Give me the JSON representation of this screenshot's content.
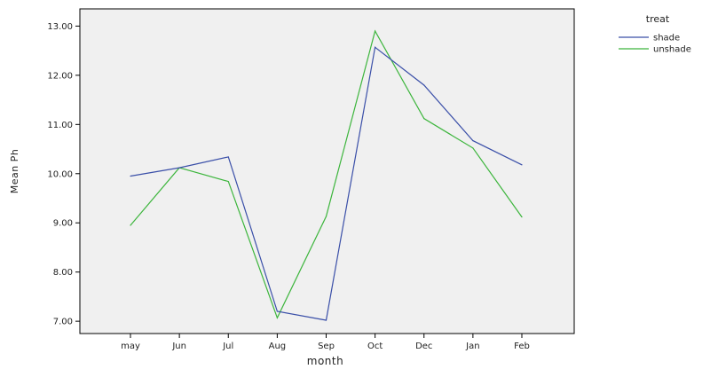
{
  "chart_data": {
    "type": "line",
    "title": "",
    "xlabel": "month",
    "ylabel": "Mean Ph",
    "categories": [
      "may",
      "Jun",
      "Jul",
      "Aug",
      "Sep",
      "Oct",
      "Dec",
      "Jan",
      "Feb"
    ],
    "ylim": [
      6.75,
      13.35
    ],
    "yticks": [
      "7.00",
      "8.00",
      "9.00",
      "10.00",
      "11.00",
      "12.00",
      "13.00"
    ],
    "grid": false,
    "legend": {
      "title": "treat",
      "placement": "top-right-outside"
    },
    "series": [
      {
        "name": "shade",
        "color": "#3a4fa8",
        "values": [
          9.95,
          10.12,
          10.34,
          7.2,
          7.02,
          12.57,
          11.8,
          10.67,
          10.18
        ]
      },
      {
        "name": "unshade",
        "color": "#3cb53c",
        "values": [
          8.95,
          10.12,
          9.84,
          7.07,
          9.13,
          12.9,
          11.12,
          10.52,
          9.12
        ]
      }
    ],
    "plot_background": "#f0f0f0"
  }
}
